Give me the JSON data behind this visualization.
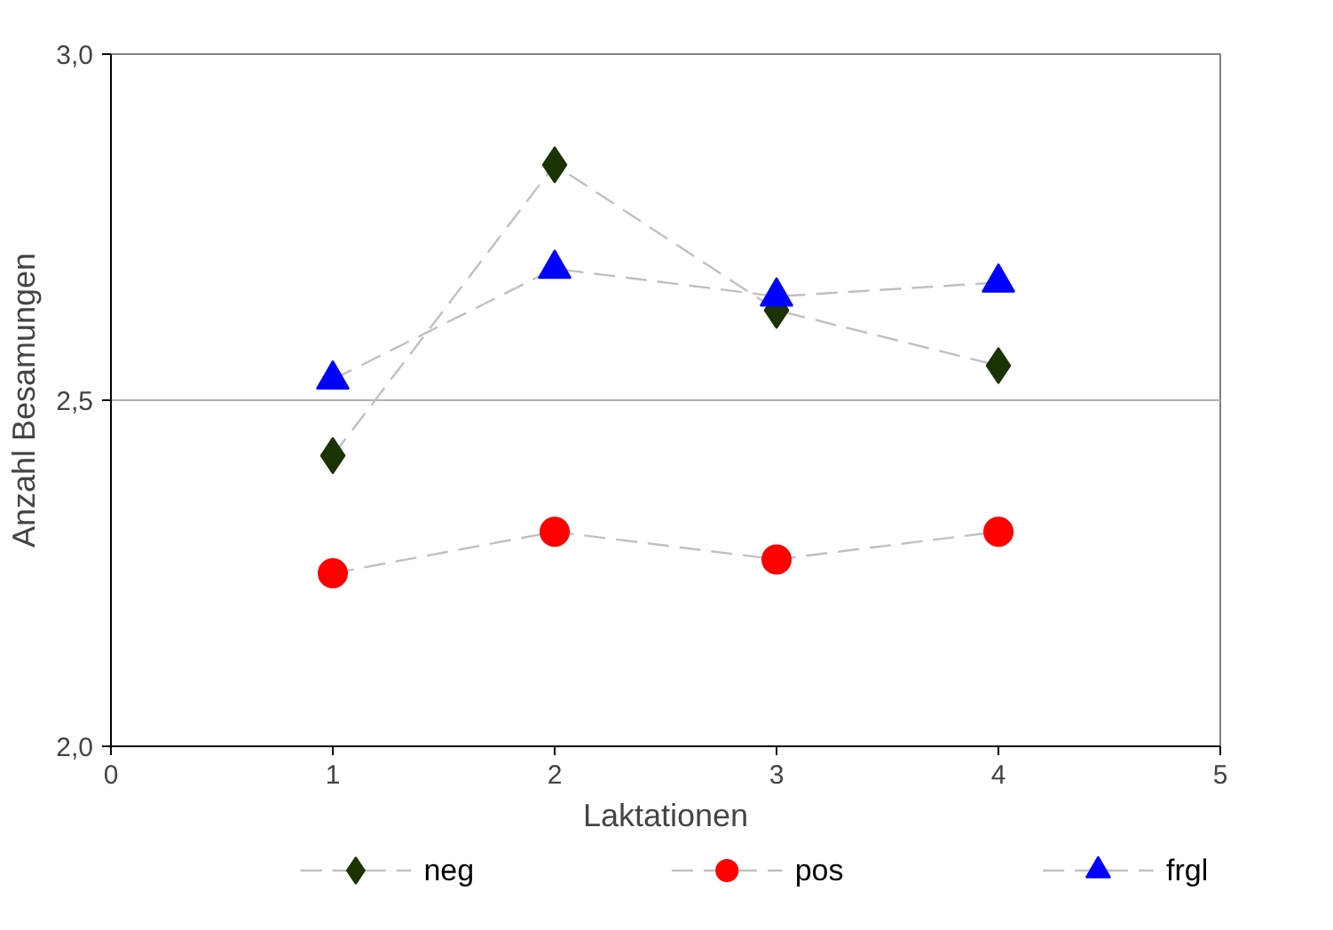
{
  "chart_data": {
    "type": "line",
    "xlabel": "Laktationen",
    "ylabel": "Anzahl Besamungen",
    "x": [
      1,
      2,
      3,
      4
    ],
    "series": [
      {
        "name": "neg",
        "color": "#1a3300",
        "marker": "diamond",
        "values": [
          2.42,
          2.84,
          2.63,
          2.55
        ]
      },
      {
        "name": "pos",
        "color": "#ff0000",
        "marker": "circle",
        "values": [
          2.25,
          2.31,
          2.27,
          2.31
        ]
      },
      {
        "name": "frgl",
        "color": "#0000ff",
        "marker": "triangle",
        "values": [
          2.53,
          2.69,
          2.65,
          2.67
        ]
      }
    ],
    "xlim": [
      0,
      5
    ],
    "xticks": [
      0,
      1,
      2,
      3,
      4,
      5
    ],
    "ylim": [
      2,
      3
    ],
    "yticks": [
      {
        "value": 2,
        "label": "2,0"
      },
      {
        "value": 2.5,
        "label": "2,5"
      },
      {
        "value": 3,
        "label": "3,0"
      }
    ],
    "grid": "y",
    "legend": "bottom",
    "line_style": "dashed"
  }
}
